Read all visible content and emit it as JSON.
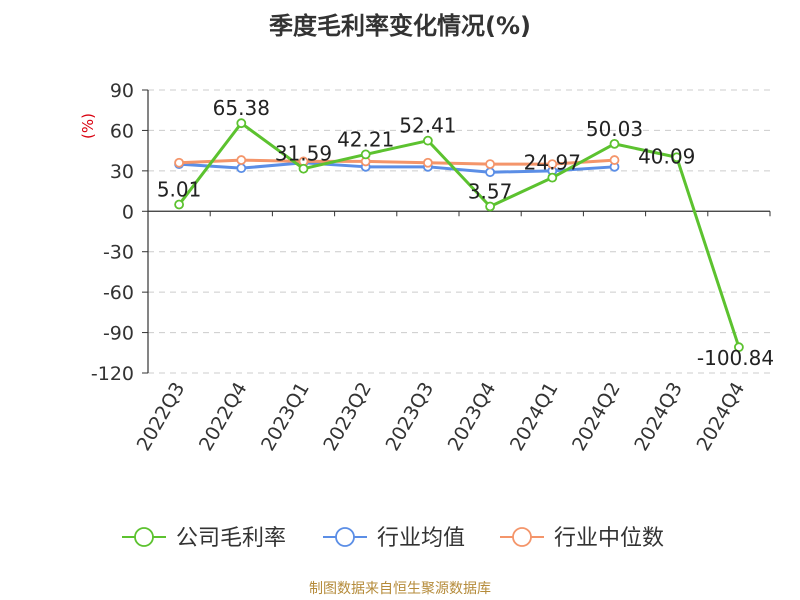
{
  "title": "季度毛利率变化情况(%)",
  "source": "制图数据来自恒生聚源数据库",
  "chart_data": {
    "type": "line",
    "title": "季度毛利率变化情况(%)",
    "ylabel": "(%)",
    "ylim": [
      -120,
      90
    ],
    "yticks": [
      90,
      60,
      30,
      0,
      -30,
      -60,
      -90,
      -120
    ],
    "categories": [
      "2022Q3",
      "2022Q4",
      "2023Q1",
      "2023Q2",
      "2023Q3",
      "2023Q4",
      "2024Q1",
      "2024Q2",
      "2024Q3",
      "2024Q4"
    ],
    "grid": true,
    "legend_position": "bottom",
    "series": [
      {
        "name": "公司毛利率",
        "color": "#5cc22f",
        "show_labels": true,
        "values": [
          5.01,
          65.38,
          31.59,
          42.21,
          52.41,
          3.57,
          24.97,
          50.03,
          40.09,
          -100.84
        ]
      },
      {
        "name": "行业均值",
        "color": "#5b8ee6",
        "show_labels": false,
        "values": [
          35,
          32,
          36,
          33,
          33,
          29,
          30,
          33,
          null,
          null
        ]
      },
      {
        "name": "行业中位数",
        "color": "#f4956a",
        "show_labels": false,
        "values": [
          36,
          38,
          37,
          37,
          36,
          35,
          35,
          38,
          null,
          null
        ]
      }
    ]
  }
}
